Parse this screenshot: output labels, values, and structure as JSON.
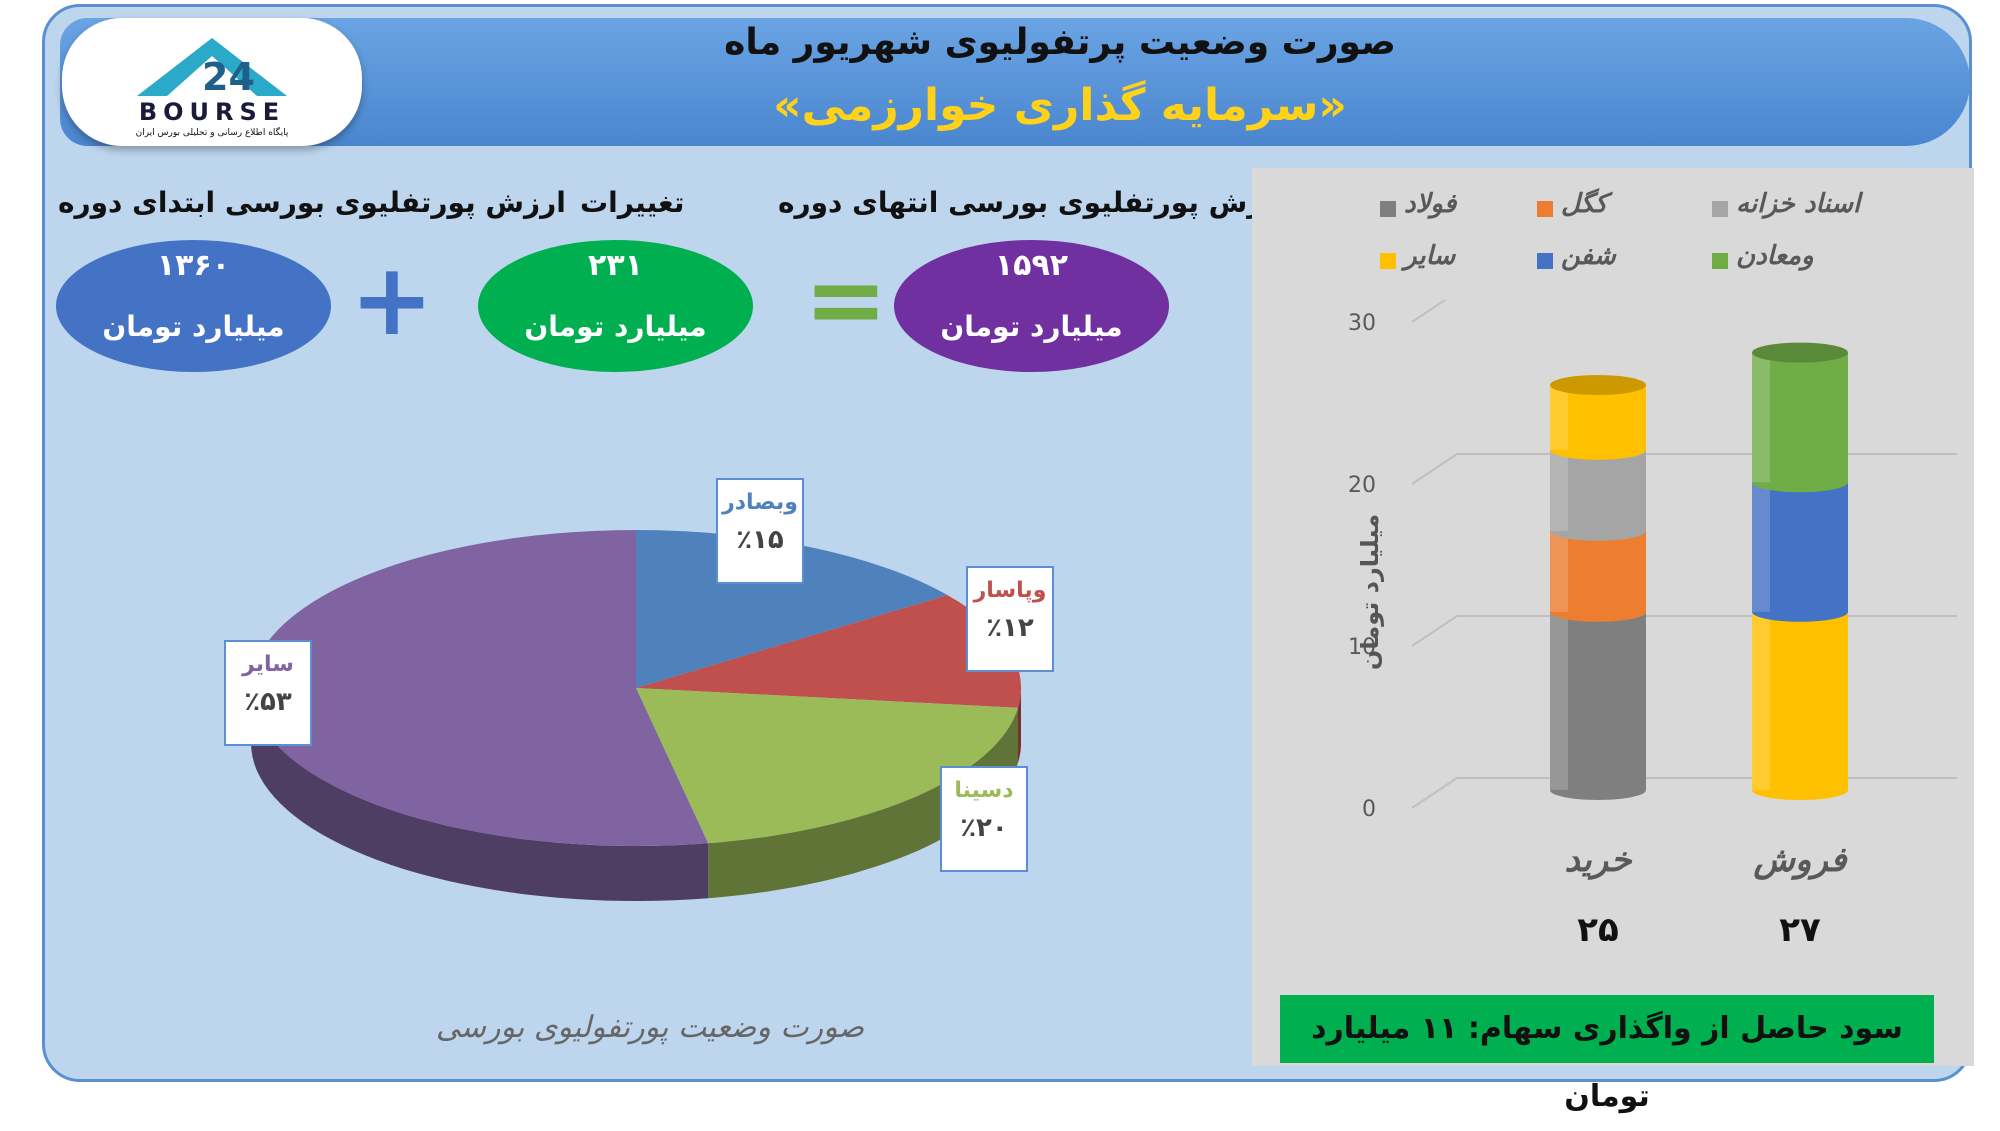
{
  "header": {
    "title_line1": "صورت وضعیت پرتفولیوی شهریور ماه",
    "title_line2": "«سرمایه گذاری خوارزمی»"
  },
  "logo": {
    "text": "BOURSE",
    "subtitle": "پایگاه اطلاع رسانی و تحلیلی بورس ایران"
  },
  "summary": {
    "start": {
      "label": "ارزش پورتفلیوی بورسی ابتدای دوره",
      "value": "۱۳۶۰",
      "unit": "میلیارد تومان",
      "color": "#4472c4"
    },
    "change": {
      "label": "تغییرات",
      "value": "۲۳۱",
      "unit": "میلیارد تومان",
      "color": "#00b050"
    },
    "end": {
      "label": "ارزش پورتفلیوی بورسی انتهای دوره",
      "value": "۱۵۹۲",
      "unit": "میلیارد تومان",
      "color": "#7030a0"
    },
    "plus_symbol": "+",
    "equals_symbol": "="
  },
  "pie_caption": "صورت وضعیت پورتفولیوی بورسی",
  "bar_axis_label": "میلیارد تومان",
  "profit_note": "سود حاصل از واگذاری سهام: ۱۱ میلیارد تومان",
  "chart_data": [
    {
      "type": "pie",
      "slices": [
        {
          "label": "وبصادر",
          "value": 15,
          "display": "٪۱۵",
          "color": "#4f81bd",
          "label_color": "#4f81bd"
        },
        {
          "label": "وپاسار",
          "value": 12,
          "display": "٪۱۲",
          "color": "#c0504d",
          "label_color": "#c0504d"
        },
        {
          "label": "دسینا",
          "value": 20,
          "display": "٪۲۰",
          "color": "#9bbb59",
          "label_color": "#9bbb59"
        },
        {
          "label": "سایر",
          "value": 53,
          "display": "٪۵۳",
          "color": "#8064a2",
          "label_color": "#8064a2"
        }
      ]
    },
    {
      "type": "bar",
      "stacked": true,
      "categories": [
        "خرید",
        "فروش"
      ],
      "totals": [
        "۲۵",
        "۲۷"
      ],
      "ylim": [
        0,
        30
      ],
      "yticks": [
        0,
        10,
        20,
        30
      ],
      "ylabel": "میلیارد تومان",
      "series": [
        {
          "name": "فولاد",
          "values": [
            11,
            0
          ],
          "color": "#7f7f7f"
        },
        {
          "name": "کگل",
          "values": [
            5,
            0
          ],
          "color": "#ed7d31"
        },
        {
          "name": "اسناد خزانه",
          "values": [
            5,
            0
          ],
          "color": "#a5a5a5"
        },
        {
          "name": "سایر",
          "values": [
            4,
            11
          ],
          "color": "#ffc000"
        },
        {
          "name": "شفن",
          "values": [
            0,
            8
          ],
          "color": "#4472c4"
        },
        {
          "name": "ومعادن",
          "values": [
            0,
            8
          ],
          "color": "#70ad47"
        }
      ],
      "legend": [
        "فولاد",
        "کگل",
        "اسناد خزانه",
        "سایر",
        "شفن",
        "ومعادن"
      ]
    }
  ]
}
